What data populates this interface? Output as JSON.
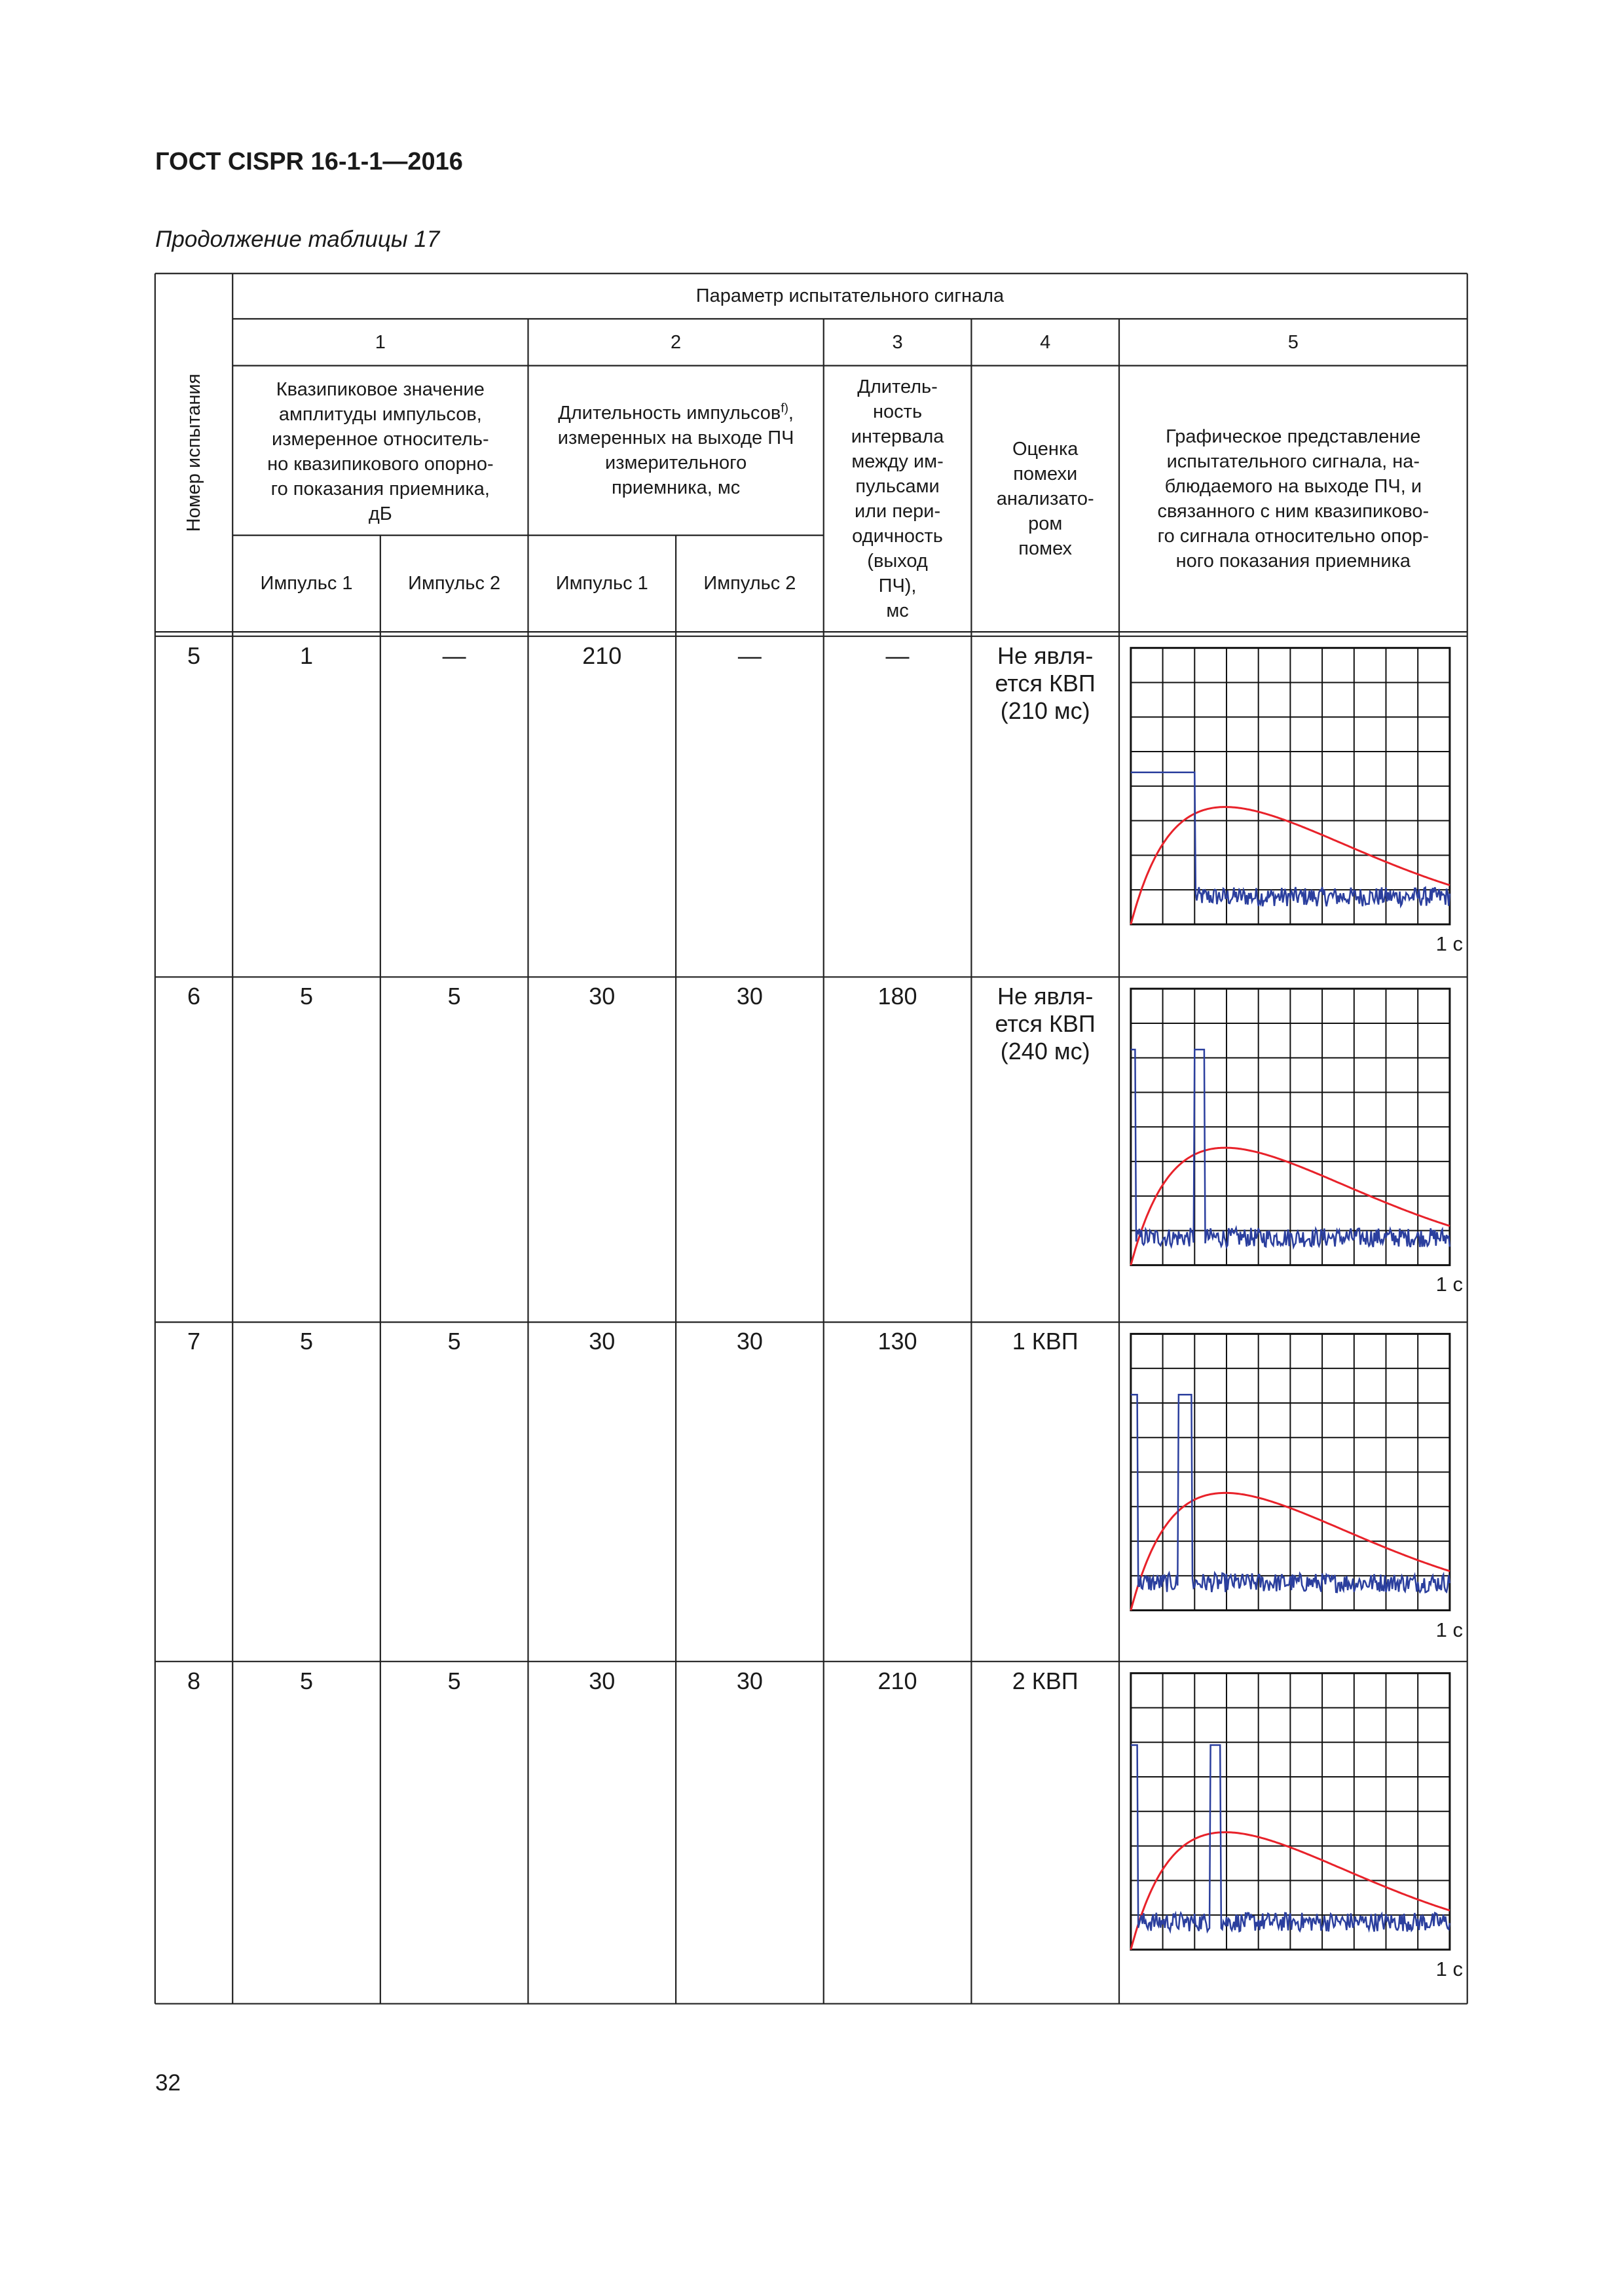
{
  "header": {
    "title": "ГОСТ CISPR 16-1-1—2016",
    "caption": "Продолжение таблицы 17"
  },
  "table": {
    "test_number_header": "Номер испытания",
    "parameter_header": "Параметр испытательного сигнала",
    "column_numbers": [
      1,
      2,
      3,
      4,
      5
    ],
    "column_1_header": "Квазипиковое значение\nамплитуды импульсов,\nизмеренное относитель-\nно квазипикового опорно-\nго показания приемника,\nдБ",
    "column_2_header": {
      "text_before": "Длительность импульсов",
      "superscript": "f)",
      "text_after": ",\nизмеренных на выходе ПЧ\nизмерительного\nприемника, мс"
    },
    "column_3_header": "Длитель-\nность\nинтервала\nмежду им-\nпульсами\nили пери-\nодичность\n(выход\nПЧ),\nмс",
    "column_4_header": "Оценка\nпомехи\nанализато-\nром\nпомех",
    "column_5_header": "Графическое представление\nиспытательного сигнала, на-\nблюдаемого на выходе ПЧ, и\nсвязанного с ним квазипиково-\nго сигнала относительно опор-\nного показания приемника",
    "sub_headers": [
      "Импульс 1",
      "Импульс 2",
      "Импульс 1",
      "Импульс 2"
    ],
    "rows": [
      {
        "cells": [
          5,
          1,
          "—",
          210,
          "—",
          "—",
          "Не явля-\nется КВП\n(210 мс)"
        ],
        "graph_label": "1 с"
      },
      {
        "cells": [
          6,
          5,
          5,
          30,
          30,
          180,
          "Не явля-\nется КВП\n(240 мс)"
        ],
        "graph_label": "1 с"
      },
      {
        "cells": [
          7,
          5,
          5,
          30,
          30,
          130,
          "1 КВП"
        ],
        "graph_label": "1 с"
      },
      {
        "cells": [
          8,
          5,
          5,
          30,
          30,
          210,
          "2 КВП"
        ],
        "graph_label": "1 с"
      }
    ]
  },
  "footer": {
    "page_number": "32"
  }
}
